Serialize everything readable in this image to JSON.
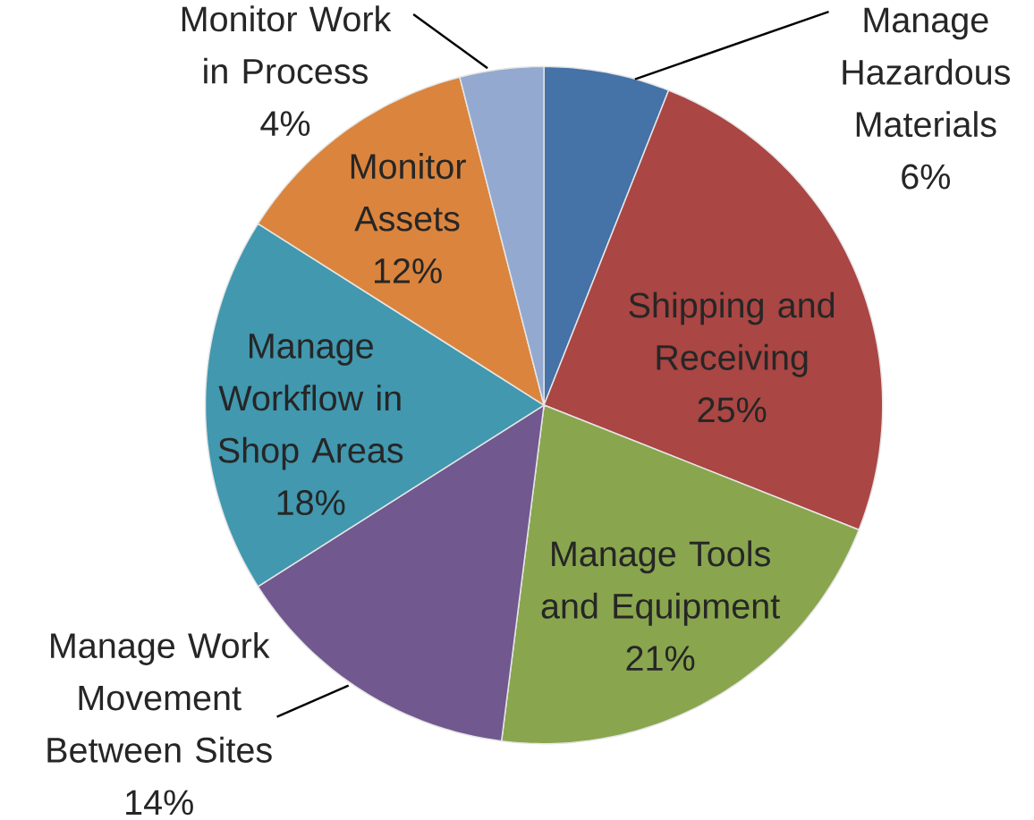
{
  "chart_data": {
    "type": "pie",
    "categories": [
      "Manage Hazardous Materials",
      "Shipping and Receiving",
      "Manage Tools and Equipment",
      "Manage Work Movement Between Sites",
      "Manage Workflow in Shop Areas",
      "Monitor Assets",
      "Monitor Work in Process"
    ],
    "values": [
      6,
      25,
      21,
      14,
      18,
      12,
      4
    ],
    "value_labels": [
      "6%",
      "25%",
      "21%",
      "14%",
      "18%",
      "12%",
      "4%"
    ],
    "colors": [
      "#4572a7",
      "#aa4643",
      "#89a54e",
      "#71588f",
      "#4198af",
      "#db843d",
      "#93a9cf"
    ]
  }
}
